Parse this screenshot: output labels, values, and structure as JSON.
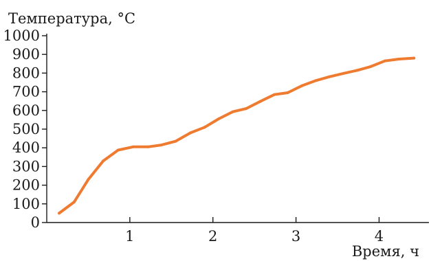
{
  "chart_data": {
    "type": "line",
    "ylabel": "Температура, °C",
    "xlabel": "Время, ч",
    "xlim": [
      0,
      4.6
    ],
    "ylim": [
      0,
      1000
    ],
    "x_ticks": [
      1,
      2,
      3,
      4
    ],
    "y_ticks": [
      0,
      100,
      200,
      300,
      400,
      500,
      600,
      700,
      800,
      900,
      1000
    ],
    "grid": false,
    "series": [
      {
        "color": "#ee7b30",
        "x": [
          0.15,
          0.33,
          0.5,
          0.68,
          0.86,
          1.04,
          1.22,
          1.38,
          1.55,
          1.73,
          1.9,
          2.07,
          2.24,
          2.4,
          2.57,
          2.74,
          2.9,
          3.07,
          3.24,
          3.4,
          3.57,
          3.74,
          3.9,
          4.07,
          4.24,
          4.42
        ],
        "y": [
          50,
          110,
          230,
          330,
          388,
          405,
          405,
          415,
          435,
          480,
          510,
          555,
          593,
          610,
          648,
          685,
          695,
          732,
          760,
          780,
          798,
          815,
          835,
          865,
          875,
          880
        ]
      }
    ]
  }
}
